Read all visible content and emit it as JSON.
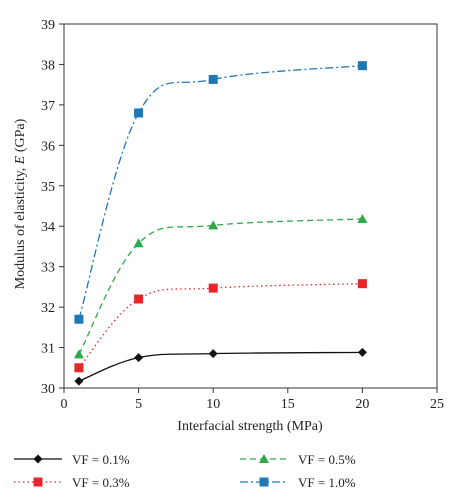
{
  "chart_data": {
    "type": "line",
    "title": "",
    "xlabel": "Interfacial strength (MPa)",
    "ylabel_parts": [
      "Modulus of elasticity, ",
      "E",
      " (GPa)"
    ],
    "xlim": [
      0,
      25
    ],
    "ylim": [
      30,
      39
    ],
    "xticks": [
      "0",
      "5",
      "10",
      "15",
      "20",
      "25"
    ],
    "yticks": [
      "30",
      "31",
      "32",
      "33",
      "34",
      "35",
      "36",
      "37",
      "38",
      "39"
    ],
    "grid": false,
    "legend_position": "bottom",
    "series": [
      {
        "name": "VF = 0.1%",
        "marker": "diamond",
        "line": "solid",
        "color": "#111111",
        "x": [
          1,
          5,
          10,
          20
        ],
        "y": [
          30.17,
          30.75,
          30.85,
          30.88
        ]
      },
      {
        "name": "VF = 0.3%",
        "marker": "square",
        "line": "dotted",
        "color": "#e8252a",
        "x": [
          1,
          5,
          10,
          20
        ],
        "y": [
          30.5,
          32.2,
          32.47,
          32.58
        ]
      },
      {
        "name": "VF = 0.5%",
        "marker": "triangle",
        "line": "dashed",
        "color": "#2ea84a",
        "x": [
          1,
          5,
          10,
          20
        ],
        "y": [
          30.83,
          33.58,
          34.02,
          34.18
        ]
      },
      {
        "name": "VF = 1.0%",
        "marker": "square",
        "line": "dashdot",
        "color": "#1f78b4",
        "x": [
          1,
          5,
          10,
          20
        ],
        "y": [
          31.7,
          36.8,
          37.63,
          37.97
        ]
      }
    ]
  }
}
